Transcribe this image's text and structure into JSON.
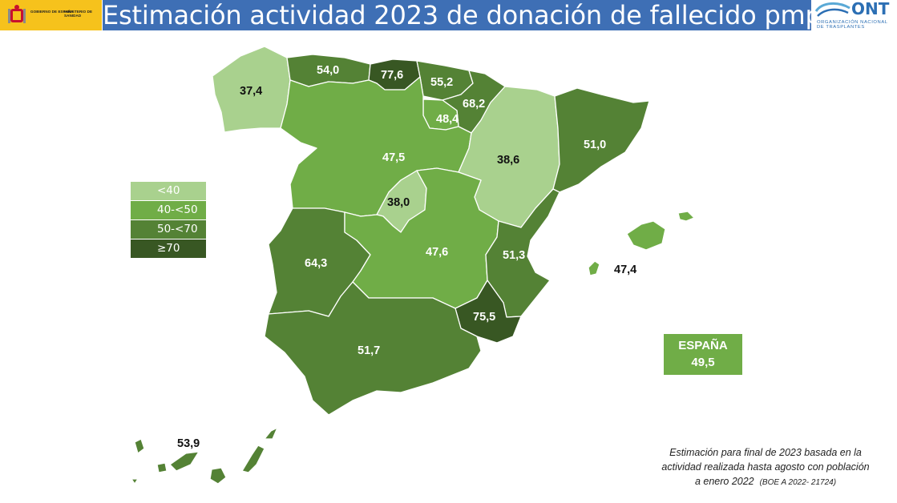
{
  "header": {
    "title": "Estimación actividad 2023 de donación de fallecido pmp",
    "gov_logo_text": "GOBIERNO DE ESPAÑA",
    "ministry_text": "MINISTERIO DE SANIDAD",
    "ont_logo": "ONT",
    "ont_subtitle_1": "ORGANIZACIÓN NACIONAL",
    "ont_subtitle_2": "DE TRASPLANTES"
  },
  "legend": {
    "items": [
      {
        "label": "<40",
        "color": "#a9d18e"
      },
      {
        "label": "40-<50",
        "color": "#70ad47"
      },
      {
        "label": "50-<70",
        "color": "#548235"
      },
      {
        "label": "≥70",
        "color": "#385723"
      }
    ]
  },
  "regions": [
    {
      "name": "Galicia",
      "value": "37,4",
      "class": "<40"
    },
    {
      "name": "Asturias",
      "value": "54,0",
      "class": "50-<70"
    },
    {
      "name": "Cantabria",
      "value": "77,6",
      "class": "≥70"
    },
    {
      "name": "País Vasco",
      "value": "55,2",
      "class": "50-<70"
    },
    {
      "name": "Navarra",
      "value": "68,2",
      "class": "50-<70"
    },
    {
      "name": "La Rioja",
      "value": "48,4",
      "class": "40-<50"
    },
    {
      "name": "Castilla y León",
      "value": "47,5",
      "class": "40-<50"
    },
    {
      "name": "Aragón",
      "value": "38,6",
      "class": "<40"
    },
    {
      "name": "Cataluña",
      "value": "51,0",
      "class": "50-<70"
    },
    {
      "name": "Madrid",
      "value": "38,0",
      "class": "<40"
    },
    {
      "name": "Extremadura",
      "value": "64,3",
      "class": "50-<70"
    },
    {
      "name": "Castilla-La Mancha",
      "value": "47,6",
      "class": "40-<50"
    },
    {
      "name": "Comunidad Valenciana",
      "value": "51,3",
      "class": "50-<70"
    },
    {
      "name": "Murcia",
      "value": "75,5",
      "class": "≥70"
    },
    {
      "name": "Andalucía",
      "value": "51,7",
      "class": "50-<70"
    },
    {
      "name": "Baleares",
      "value": "47,4",
      "class": "40-<50"
    },
    {
      "name": "Canarias",
      "value": "53,9",
      "class": "50-<70"
    }
  ],
  "national": {
    "label": "ESPAÑA",
    "value": "49,5"
  },
  "footnote": {
    "line1": "Estimación para final de 2023 basada en la",
    "line2": "actividad realizada hasta agosto con población",
    "line3": "a enero 2022",
    "line3_small": "(BOE A 2022- 21724)"
  }
}
